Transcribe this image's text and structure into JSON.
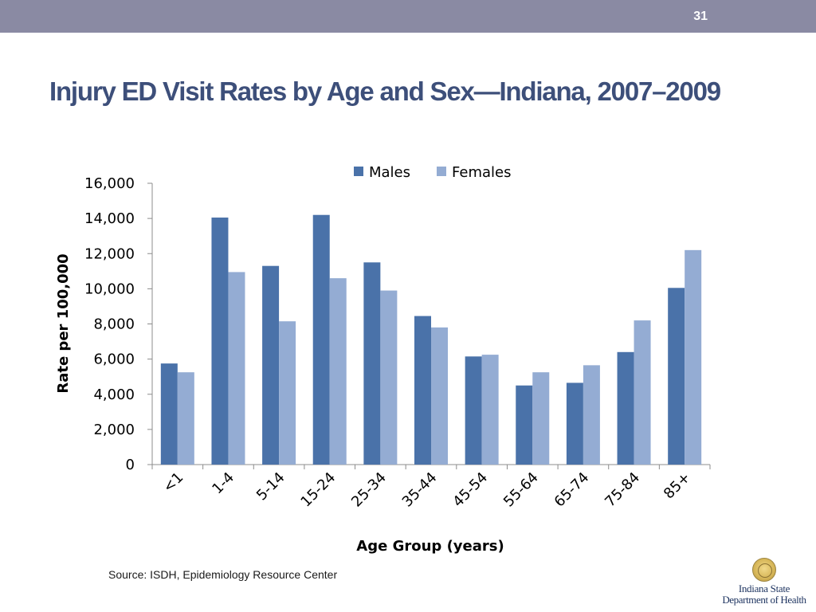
{
  "slide": {
    "number": "31",
    "title": "Injury ED Visit Rates by Age and Sex—Indiana, 2007–2009"
  },
  "source": "Source: ISDH, Epidemiology Resource Center",
  "logo": {
    "line1": "Indiana State",
    "line2": "Department of Health"
  },
  "colors": {
    "males": "#4a72a9",
    "females": "#94acd3",
    "axis": "#8c8c8c",
    "topbar": "#8a8aa3",
    "title": "#3d4f7a"
  },
  "chart_data": {
    "type": "bar",
    "title": "",
    "xlabel": "Age Group (years)",
    "ylabel": "Rate per 100,000",
    "ylim": [
      0,
      16000
    ],
    "yticks": [
      "0",
      "2,000",
      "4,000",
      "6,000",
      "8,000",
      "10,000",
      "12,000",
      "14,000",
      "16,000"
    ],
    "grid": false,
    "legend": "top",
    "categories": [
      "<1",
      "1-4",
      "5-14",
      "15-24",
      "25-34",
      "35-44",
      "45-54",
      "55-64",
      "65-74",
      "75-84",
      "85+"
    ],
    "series": [
      {
        "name": "Males",
        "values": [
          5750,
          14050,
          11300,
          14200,
          11500,
          8450,
          6150,
          4500,
          4650,
          6400,
          10050
        ]
      },
      {
        "name": "Females",
        "values": [
          5250,
          10950,
          8150,
          10600,
          9900,
          7800,
          6250,
          5250,
          5650,
          8200,
          12200
        ]
      }
    ]
  }
}
